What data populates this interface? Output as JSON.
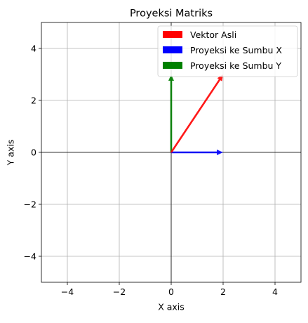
{
  "chart_data": {
    "type": "quiver",
    "title": "Proyeksi Matriks",
    "xlabel": "X axis",
    "ylabel": "Y axis",
    "xlim": [
      -5,
      5
    ],
    "ylim": [
      -5,
      5
    ],
    "grid": true,
    "reference_lines": {
      "x": 0,
      "y": 0,
      "color": "#000000"
    },
    "x_ticks": [
      -4,
      -2,
      0,
      2,
      4
    ],
    "y_ticks": [
      -4,
      -2,
      0,
      2,
      4
    ],
    "x_tick_labels": [
      "−4",
      "−2",
      "0",
      "2",
      "4"
    ],
    "y_tick_labels": [
      "−4",
      "−2",
      "0",
      "2",
      "4"
    ],
    "legend_position": "upper right",
    "series": [
      {
        "name": "Vektor Asli",
        "color": "#ff0000",
        "origin": [
          0,
          0
        ],
        "vector": [
          2,
          3
        ]
      },
      {
        "name": "Proyeksi ke Sumbu X",
        "color": "#0000ff",
        "origin": [
          0,
          0
        ],
        "vector": [
          2,
          0
        ]
      },
      {
        "name": "Proyeksi ke Sumbu Y",
        "color": "#008000",
        "origin": [
          0,
          0
        ],
        "vector": [
          0,
          3
        ]
      }
    ]
  }
}
